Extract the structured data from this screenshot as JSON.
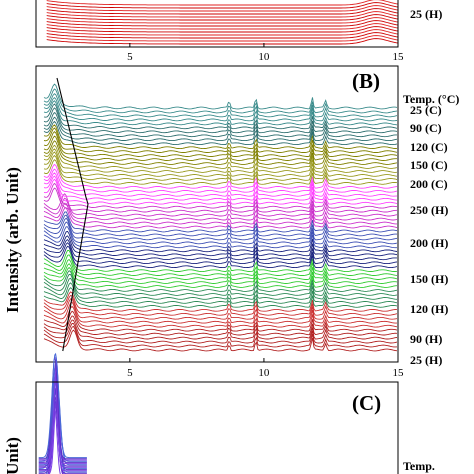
{
  "chart_data": [
    {
      "panel": "A",
      "type": "line",
      "xlim": [
        1.5,
        15
      ],
      "x_ticks": [
        5,
        10,
        15
      ],
      "legend_entries": [
        "25 (H)"
      ],
      "series_colors": [
        "#cc0000",
        "#e02020"
      ]
    },
    {
      "panel": "B",
      "type": "line",
      "title": "(B)",
      "ylabel": "Intensity (arb. Unit)",
      "xlim": [
        1.5,
        15
      ],
      "x_ticks": [
        5,
        10,
        15
      ],
      "grid": false,
      "legend_header": "Temp. (°C)",
      "legend_entries": [
        "25 (C)",
        "90 (C)",
        "120 (C)",
        "150 (C)",
        "200 (C)",
        "250 (H)",
        "200 (H)",
        "150 (H)",
        "120 (H)",
        "90 (H)",
        "25 (H)"
      ],
      "series_colors": [
        "#b22222",
        "#cc3333",
        "#2e8b57",
        "#33cc33",
        "#1a237e",
        "#3f51b5",
        "#cc33cc",
        "#ff44ff",
        "#9a9a22",
        "#808000",
        "#2f6f6f",
        "#3b8c8c"
      ],
      "trace_count": 62,
      "peak_positions_2theta": [
        2.2,
        2.9,
        8.7,
        9.7,
        11.8,
        12.3
      ]
    },
    {
      "panel": "C",
      "type": "line",
      "title": "(C)",
      "ylabel": "Unit)",
      "legend_header": "Temp.",
      "series_colors": [
        "#7b3fe4",
        "#5a2fc8",
        "#4a6ad8"
      ]
    }
  ]
}
